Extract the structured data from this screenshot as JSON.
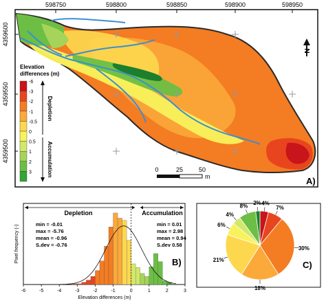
{
  "colors": {
    "depletion_scale": [
      "#c8141b",
      "#e8451f",
      "#f47c22",
      "#fba93a",
      "#fdd84f",
      "#f8f25c"
    ],
    "accumulation_scale": [
      "#d2e86a",
      "#a6d45a",
      "#6cbf44",
      "#34a338",
      "#1b7f2d"
    ],
    "stream": "#3a8fd1",
    "outline": "#2a2a2a"
  },
  "map": {
    "panel_label": "A)",
    "x_ticks": [
      "598750",
      "598800",
      "598850",
      "598900",
      "598950"
    ],
    "y_ticks": [
      "4359600",
      "4359550",
      "4359500"
    ],
    "legend_title": "Elevation\ndifferences (m)",
    "legend_labels": [
      "-6",
      "-3",
      "-2",
      "-1",
      "-0.5",
      "0",
      "0.5",
      "1",
      "2",
      "3"
    ],
    "depletion_label": "Depletion",
    "accumulation_label": "Accumulation",
    "scale_labels": [
      "0",
      "25",
      "50"
    ],
    "scale_unit": "m",
    "north_label": "N"
  },
  "histogram": {
    "panel_label": "B)",
    "depletion_header": "Depletion",
    "accumulation_header": "Accumulation",
    "left_stats": [
      "min = -0.01",
      "max = -5.76",
      "mean = -0.96",
      "S.dev = -0.76"
    ],
    "right_stats": [
      "min = 0.01",
      "max = 2.98",
      "mean = 0.94",
      "S.dev 0.58"
    ]
  },
  "pie": {
    "panel_label": "C)"
  },
  "chart_data": [
    {
      "type": "bar",
      "title": "",
      "xlabel": "Elevation differences (m)",
      "ylabel": "Pixel frequency (-)",
      "xlim": [
        -6,
        3
      ],
      "x_tick_labels": [
        "-6",
        "-5",
        "-4",
        "-3",
        "-2",
        "-1",
        "0",
        "1",
        "2",
        "3"
      ],
      "bin_width": 0.25,
      "bin_starts": [
        -3.25,
        -3.0,
        -2.75,
        -2.5,
        -2.25,
        -2.0,
        -1.75,
        -1.5,
        -1.25,
        -1.0,
        -0.75,
        -0.5,
        -0.25,
        0.0,
        0.25,
        0.5,
        0.75,
        1.0,
        1.25,
        1.5,
        1.75,
        2.0
      ],
      "values": [
        1,
        1,
        3,
        6,
        11,
        19,
        32,
        52,
        78,
        97,
        90,
        87,
        60,
        28,
        23,
        15,
        11,
        24,
        42,
        31,
        5,
        3
      ],
      "ylim": [
        0,
        110
      ],
      "fit_curve": "normal",
      "grid": false
    },
    {
      "type": "pie",
      "slice_labels": [
        "4%",
        "7%",
        "30%",
        "18%",
        "21%",
        "6%",
        "4%",
        "8%",
        "2%"
      ],
      "values": [
        4,
        7,
        30,
        18,
        21,
        6,
        4,
        8,
        2
      ],
      "colors": [
        "#c8141b",
        "#e8451f",
        "#f47c22",
        "#fba93a",
        "#fdd84f",
        "#f8f25c",
        "#d2e86a",
        "#6cbf44",
        "#1b7f2d"
      ]
    }
  ]
}
